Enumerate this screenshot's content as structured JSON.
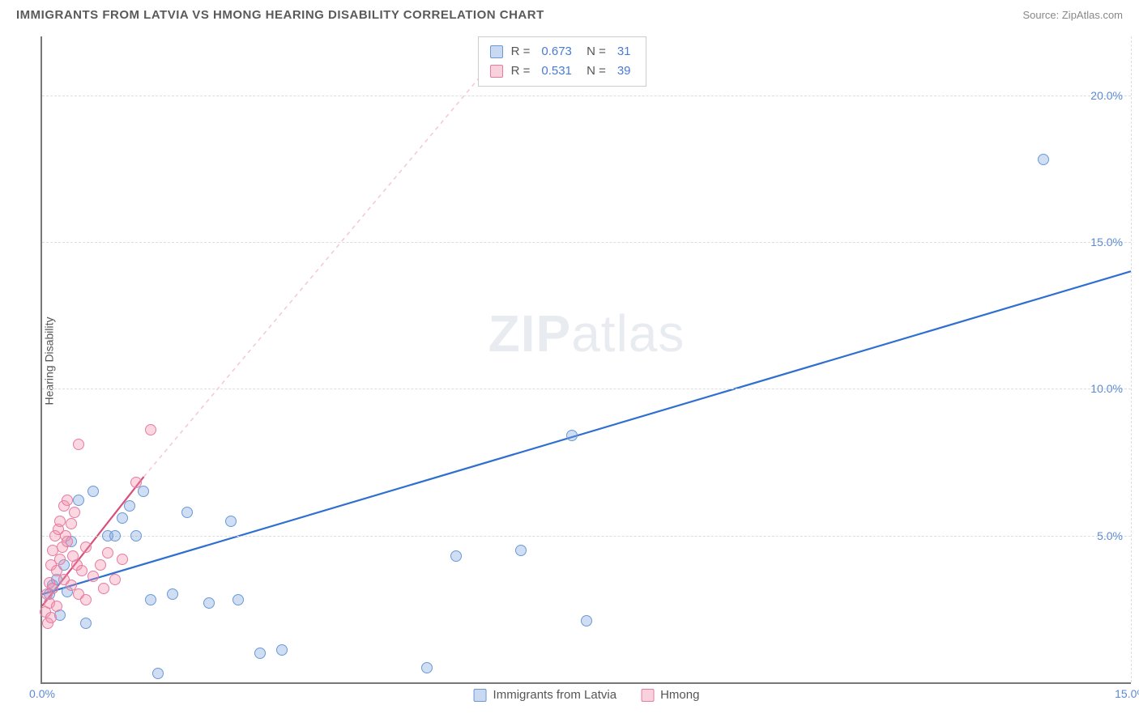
{
  "header": {
    "title": "IMMIGRANTS FROM LATVIA VS HMONG HEARING DISABILITY CORRELATION CHART",
    "source": "Source: ZipAtlas.com"
  },
  "watermark": {
    "bold": "ZIP",
    "rest": "atlas"
  },
  "chart": {
    "type": "scatter",
    "ylabel": "Hearing Disability",
    "xlim": [
      0,
      15
    ],
    "ylim": [
      0,
      22
    ],
    "xticks": [
      0,
      15
    ],
    "xtick_labels": [
      "0.0%",
      "15.0%"
    ],
    "yticks": [
      5,
      10,
      15,
      20
    ],
    "ytick_labels": [
      "5.0%",
      "10.0%",
      "15.0%",
      "20.0%"
    ],
    "grid_color": "#dddddd",
    "axis_color": "#777777",
    "background_color": "#ffffff",
    "marker_size": 14,
    "series": [
      {
        "name": "Immigrants from Latvia",
        "color_fill": "rgba(120,160,220,0.35)",
        "color_stroke": "#6a99d8",
        "line_color": "#2f6fd0",
        "line_dashed_color": "#b6cdf0",
        "R": "0.673",
        "N": "31",
        "points": [
          [
            0.1,
            3.0
          ],
          [
            0.15,
            3.3
          ],
          [
            0.2,
            3.5
          ],
          [
            0.25,
            2.3
          ],
          [
            0.3,
            4.0
          ],
          [
            0.35,
            3.1
          ],
          [
            0.4,
            4.8
          ],
          [
            0.5,
            6.2
          ],
          [
            0.6,
            2.0
          ],
          [
            0.7,
            6.5
          ],
          [
            0.9,
            5.0
          ],
          [
            1.0,
            5.0
          ],
          [
            1.1,
            5.6
          ],
          [
            1.2,
            6.0
          ],
          [
            1.3,
            5.0
          ],
          [
            1.4,
            6.5
          ],
          [
            1.5,
            2.8
          ],
          [
            1.6,
            0.3
          ],
          [
            1.8,
            3.0
          ],
          [
            2.0,
            5.8
          ],
          [
            2.3,
            2.7
          ],
          [
            2.6,
            5.5
          ],
          [
            2.7,
            2.8
          ],
          [
            3.0,
            1.0
          ],
          [
            3.3,
            1.1
          ],
          [
            5.3,
            0.5
          ],
          [
            5.7,
            4.3
          ],
          [
            6.6,
            4.5
          ],
          [
            7.3,
            8.4
          ],
          [
            7.5,
            2.1
          ],
          [
            13.8,
            17.8
          ]
        ],
        "trend": {
          "x1": 0,
          "y1": 3.0,
          "x2": 15,
          "y2": 14.0,
          "dash_y2": 22
        }
      },
      {
        "name": "Hmong",
        "color_fill": "rgba(240,140,170,0.35)",
        "color_stroke": "#e87ba0",
        "line_color": "#d94f7a",
        "line_dashed_color": "#f5c6d6",
        "R": "0.531",
        "N": "39",
        "points": [
          [
            0.05,
            2.4
          ],
          [
            0.07,
            3.0
          ],
          [
            0.08,
            2.0
          ],
          [
            0.1,
            2.7
          ],
          [
            0.1,
            3.4
          ],
          [
            0.12,
            4.0
          ],
          [
            0.12,
            2.2
          ],
          [
            0.15,
            4.5
          ],
          [
            0.15,
            3.2
          ],
          [
            0.18,
            5.0
          ],
          [
            0.2,
            3.8
          ],
          [
            0.2,
            2.6
          ],
          [
            0.22,
            5.2
          ],
          [
            0.25,
            4.2
          ],
          [
            0.25,
            5.5
          ],
          [
            0.28,
            4.6
          ],
          [
            0.3,
            3.5
          ],
          [
            0.3,
            6.0
          ],
          [
            0.32,
            5.0
          ],
          [
            0.35,
            4.8
          ],
          [
            0.35,
            6.2
          ],
          [
            0.4,
            3.3
          ],
          [
            0.4,
            5.4
          ],
          [
            0.42,
            4.3
          ],
          [
            0.45,
            5.8
          ],
          [
            0.48,
            4.0
          ],
          [
            0.5,
            8.1
          ],
          [
            0.5,
            3.0
          ],
          [
            0.55,
            3.8
          ],
          [
            0.6,
            4.6
          ],
          [
            0.6,
            2.8
          ],
          [
            0.7,
            3.6
          ],
          [
            0.8,
            4.0
          ],
          [
            0.85,
            3.2
          ],
          [
            0.9,
            4.4
          ],
          [
            1.0,
            3.5
          ],
          [
            1.1,
            4.2
          ],
          [
            1.5,
            8.6
          ],
          [
            1.3,
            6.8
          ]
        ],
        "trend": {
          "x1": 0,
          "y1": 2.6,
          "x2": 1.4,
          "y2": 7.0,
          "dash_x2": 6.5,
          "dash_y2": 22
        }
      }
    ]
  },
  "legend": {
    "items": [
      {
        "swatch": "blue",
        "label": "Immigrants from Latvia"
      },
      {
        "swatch": "pink",
        "label": "Hmong"
      }
    ]
  }
}
